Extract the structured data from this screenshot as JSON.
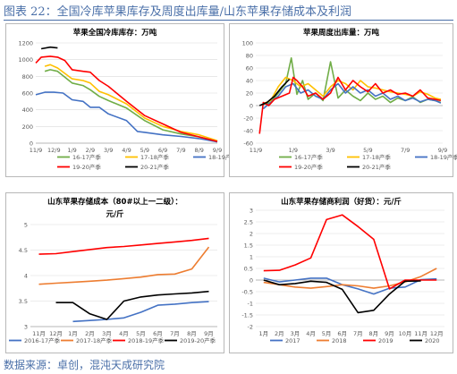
{
  "figure": {
    "title": "图表 22：全国冷库苹果库存及周度出库量/山东苹果存储成本及利润",
    "source": "数据来源：卓创，混沌天成研究院"
  },
  "colors": {
    "frame": "#4a6fa8",
    "border": "#b8b8b8",
    "grid": "#d9d9d9",
    "axis_text": "#595959",
    "s1617": "#70ad47",
    "s1718": "#ffc000",
    "s1819": "#4472c4",
    "s1920": "#ff0000",
    "s2021": "#000000",
    "y2017": "#4472c4",
    "y2018": "#ed7d31",
    "y2019": "#ff0000",
    "y2020": "#000000",
    "cost1617": "#4472c4",
    "cost1718": "#ed7d31",
    "cost1819": "#ff0000",
    "cost1920": "#000000"
  },
  "chart_data": [
    {
      "type": "line",
      "title": "苹果全国冷库库存：万吨",
      "x_ticks": [
        "11/9",
        "12/9",
        "1/9",
        "2/9",
        "3/9",
        "4/9",
        "5/9",
        "6/9",
        "7/9",
        "8/9",
        "9/9"
      ],
      "x_range": [
        0,
        10
      ],
      "ylim": [
        0,
        1200
      ],
      "y_ticks": [
        0,
        200,
        400,
        600,
        800,
        1000,
        1200
      ],
      "grid": true,
      "legend_position": "bottom",
      "series": [
        {
          "name": "16-17产季",
          "color_key": "s1617",
          "x": [
            0.5,
            0.8,
            1.2,
            2,
            2.6,
            3,
            3.5,
            4,
            5,
            6,
            7,
            8,
            9,
            10
          ],
          "y": [
            860,
            880,
            860,
            720,
            690,
            640,
            560,
            510,
            420,
            270,
            160,
            110,
            75,
            20
          ]
        },
        {
          "name": "17-18产季",
          "color_key": "s1718",
          "x": [
            0.5,
            0.8,
            1.2,
            2,
            2.6,
            3,
            3.5,
            4,
            5,
            6,
            7,
            8,
            9,
            10
          ],
          "y": [
            920,
            940,
            900,
            770,
            750,
            720,
            620,
            580,
            470,
            300,
            200,
            140,
            100,
            30
          ]
        },
        {
          "name": "18-19产季",
          "color_key": "s1819",
          "x": [
            0,
            0.5,
            1,
            1.5,
            2,
            2.6,
            3,
            3.5,
            4,
            5,
            5.6,
            6,
            7,
            8,
            9,
            10
          ],
          "y": [
            580,
            610,
            610,
            600,
            520,
            500,
            430,
            430,
            350,
            270,
            140,
            130,
            100,
            80,
            55,
            15
          ]
        },
        {
          "name": "19-20产季",
          "color_key": "s1920",
          "x": [
            0,
            0.3,
            0.8,
            1.2,
            1.6,
            2,
            2.6,
            3,
            3.5,
            4,
            5,
            6,
            7,
            8,
            9,
            10
          ],
          "y": [
            960,
            1030,
            1040,
            1030,
            990,
            880,
            860,
            850,
            750,
            680,
            500,
            330,
            230,
            130,
            75,
            20
          ]
        },
        {
          "name": "20-21产季",
          "color_key": "s2021",
          "x": [
            0.3,
            0.8,
            1.2
          ],
          "y": [
            1130,
            1150,
            1140
          ]
        }
      ]
    },
    {
      "type": "line",
      "title": "苹果周度出库量：万吨",
      "x_ticks": [
        "11/9",
        "1/9",
        "3/9",
        "5/9",
        "7/9",
        "9/9"
      ],
      "x_range": [
        0,
        5
      ],
      "ylim": [
        -60,
        100
      ],
      "y_ticks": [
        -60,
        -40,
        -20,
        0,
        20,
        40,
        60,
        80,
        100
      ],
      "grid": true,
      "legend_position": "bottom",
      "series": [
        {
          "name": "16-17产季",
          "color_key": "s1617",
          "x": [
            0.2,
            0.4,
            0.6,
            0.8,
            0.95,
            1.1,
            1.25,
            1.4,
            1.6,
            1.8,
            2,
            2.2,
            2.4,
            2.6,
            2.8,
            3,
            3.2,
            3.4,
            3.6,
            3.8,
            4,
            4.2,
            4.4,
            4.6,
            4.8,
            4.95
          ],
          "y": [
            2,
            5,
            20,
            35,
            76,
            18,
            40,
            10,
            20,
            8,
            70,
            12,
            25,
            15,
            8,
            20,
            10,
            15,
            5,
            12,
            8,
            14,
            5,
            10,
            8,
            5
          ]
        },
        {
          "name": "17-18产季",
          "color_key": "s1718",
          "x": [
            0.2,
            0.4,
            0.6,
            0.8,
            1,
            1.2,
            1.4,
            1.6,
            1.8,
            2,
            2.2,
            2.4,
            2.6,
            2.8,
            3,
            3.2,
            3.4,
            3.6,
            3.8,
            4,
            4.2,
            4.4,
            4.6,
            4.8,
            4.95
          ],
          "y": [
            3,
            8,
            30,
            45,
            40,
            30,
            35,
            25,
            15,
            30,
            40,
            35,
            25,
            40,
            30,
            28,
            25,
            22,
            20,
            18,
            15,
            22,
            18,
            12,
            10
          ]
        },
        {
          "name": "18-19产季",
          "color_key": "s1819",
          "x": [
            0.2,
            0.4,
            0.6,
            0.8,
            1,
            1.2,
            1.4,
            1.6,
            1.8,
            2,
            2.2,
            2.4,
            2.6,
            2.8,
            3,
            3.2,
            3.4,
            3.6,
            3.8,
            4,
            4.2,
            4.4,
            4.6,
            4.8,
            4.95
          ],
          "y": [
            -5,
            5,
            15,
            30,
            35,
            20,
            25,
            15,
            10,
            25,
            35,
            20,
            30,
            20,
            25,
            15,
            20,
            10,
            15,
            8,
            12,
            6,
            10,
            8,
            4
          ]
        },
        {
          "name": "19-20产季",
          "color_key": "s1920",
          "x": [
            0.1,
            0.2,
            0.35,
            0.5,
            0.7,
            0.9,
            1,
            1.1,
            1.25,
            1.4,
            1.6,
            1.8,
            2,
            2.2,
            2.4,
            2.6,
            2.8,
            3,
            3.2,
            3.4,
            3.6,
            3.8,
            4,
            4.2,
            4.4,
            4.6,
            4.8,
            4.95
          ],
          "y": [
            -45,
            5,
            0,
            10,
            15,
            20,
            45,
            40,
            30,
            15,
            20,
            10,
            20,
            45,
            25,
            40,
            30,
            22,
            35,
            20,
            25,
            18,
            20,
            15,
            25,
            12,
            10,
            8
          ]
        },
        {
          "name": "20-21产季",
          "color_key": "s2021",
          "x": [
            0.1,
            0.3,
            0.5,
            0.7,
            0.9
          ],
          "y": [
            0,
            5,
            15,
            30,
            42
          ]
        }
      ]
    },
    {
      "type": "line",
      "title": "山东苹果存储成本（80#以上一二级）：",
      "title_line2": "元/斤",
      "categories": [
        "11月",
        "12月",
        "1月",
        "2月",
        "3月",
        "4月",
        "5月",
        "6月",
        "7月",
        "8月",
        "9月"
      ],
      "ylim": [
        3,
        5
      ],
      "y_ticks": [
        3,
        3.5,
        4,
        4.5,
        5
      ],
      "grid": true,
      "legend_position": "bottom",
      "series": [
        {
          "name": "2016-17产季",
          "color_key": "cost1617",
          "values": [
            null,
            null,
            3.1,
            3.12,
            3.14,
            3.17,
            3.28,
            3.42,
            3.44,
            3.47,
            3.49
          ]
        },
        {
          "name": "2017-18产季",
          "color_key": "cost1718",
          "values": [
            3.83,
            3.85,
            3.87,
            3.89,
            3.91,
            3.94,
            3.97,
            4.02,
            4.03,
            4.13,
            4.56
          ]
        },
        {
          "name": "2018-19产季",
          "color_key": "cost1819",
          "values": [
            4.42,
            4.43,
            4.47,
            4.51,
            4.55,
            4.57,
            4.6,
            4.63,
            4.66,
            4.69,
            4.73
          ]
        },
        {
          "name": "2019-20产季",
          "color_key": "cost1920",
          "values": [
            null,
            3.47,
            3.47,
            3.25,
            3.14,
            3.5,
            3.58,
            3.62,
            3.64,
            3.66,
            3.69
          ]
        }
      ]
    },
    {
      "type": "line",
      "title": "山东苹果存储商利润（好货）：元/斤",
      "categories": [
        "1月",
        "2月",
        "3月",
        "4月",
        "5月",
        "6月",
        "7月",
        "8月",
        "9月",
        "10月",
        "11月",
        "12月"
      ],
      "ylim": [
        -2,
        3
      ],
      "y_ticks": [
        -2,
        -1.5,
        -1,
        -0.5,
        0,
        0.5,
        1,
        1.5,
        2,
        2.5,
        3
      ],
      "grid": true,
      "legend_position": "bottom",
      "series": [
        {
          "name": "2017",
          "color_key": "y2017",
          "values": [
            0.08,
            -0.08,
            0.0,
            0.08,
            0.08,
            -0.2,
            -0.38,
            -0.6,
            -0.35,
            -0.3,
            0.02,
            0.05
          ]
        },
        {
          "name": "2018",
          "color_key": "y2018",
          "values": [
            -0.1,
            -0.2,
            -0.3,
            -0.35,
            -0.28,
            -0.2,
            -0.25,
            -0.35,
            -0.25,
            -0.08,
            0.15,
            0.5
          ]
        },
        {
          "name": "2019",
          "color_key": "y2019",
          "values": [
            0.4,
            0.42,
            0.65,
            0.95,
            2.6,
            2.8,
            2.3,
            1.75,
            -0.38,
            0.0,
            0.0,
            0.0
          ]
        },
        {
          "name": "2020",
          "color_key": "y2020",
          "values": [
            0.0,
            -0.2,
            -0.15,
            -0.05,
            -0.1,
            -0.4,
            -1.4,
            -1.3,
            -0.6,
            -0.05,
            -0.04,
            null
          ]
        }
      ]
    }
  ]
}
